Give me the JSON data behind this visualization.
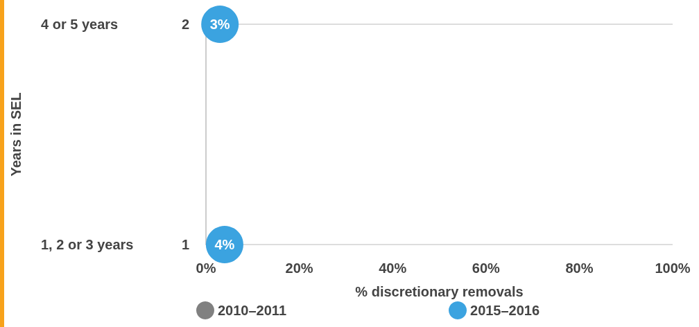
{
  "chart_data": {
    "type": "scatter",
    "orientation": "horizontal",
    "xlabel": "% discretionary removals",
    "ylabel": "Years in SEL",
    "categories": [
      "4 or 5 years",
      "1, 2 or 3 years"
    ],
    "y2_categories": [
      "2",
      "1"
    ],
    "xlim": [
      0,
      100
    ],
    "xticks": [
      {
        "value": 0,
        "label": "0%"
      },
      {
        "value": 20,
        "label": "20%"
      },
      {
        "value": 40,
        "label": "40%"
      },
      {
        "value": 60,
        "label": "60%"
      },
      {
        "value": 80,
        "label": "80%"
      },
      {
        "value": 100,
        "label": "100%"
      }
    ],
    "grid": "y",
    "legend": "bottom",
    "marker": "circle",
    "series": [
      {
        "name": "2010–2011",
        "color": "#808080",
        "values": [
          null,
          null
        ]
      },
      {
        "name": "2015–2016",
        "color": "#3ba3e0",
        "values": [
          3,
          4
        ],
        "value_labels": [
          "3%",
          "4%"
        ]
      }
    ]
  }
}
